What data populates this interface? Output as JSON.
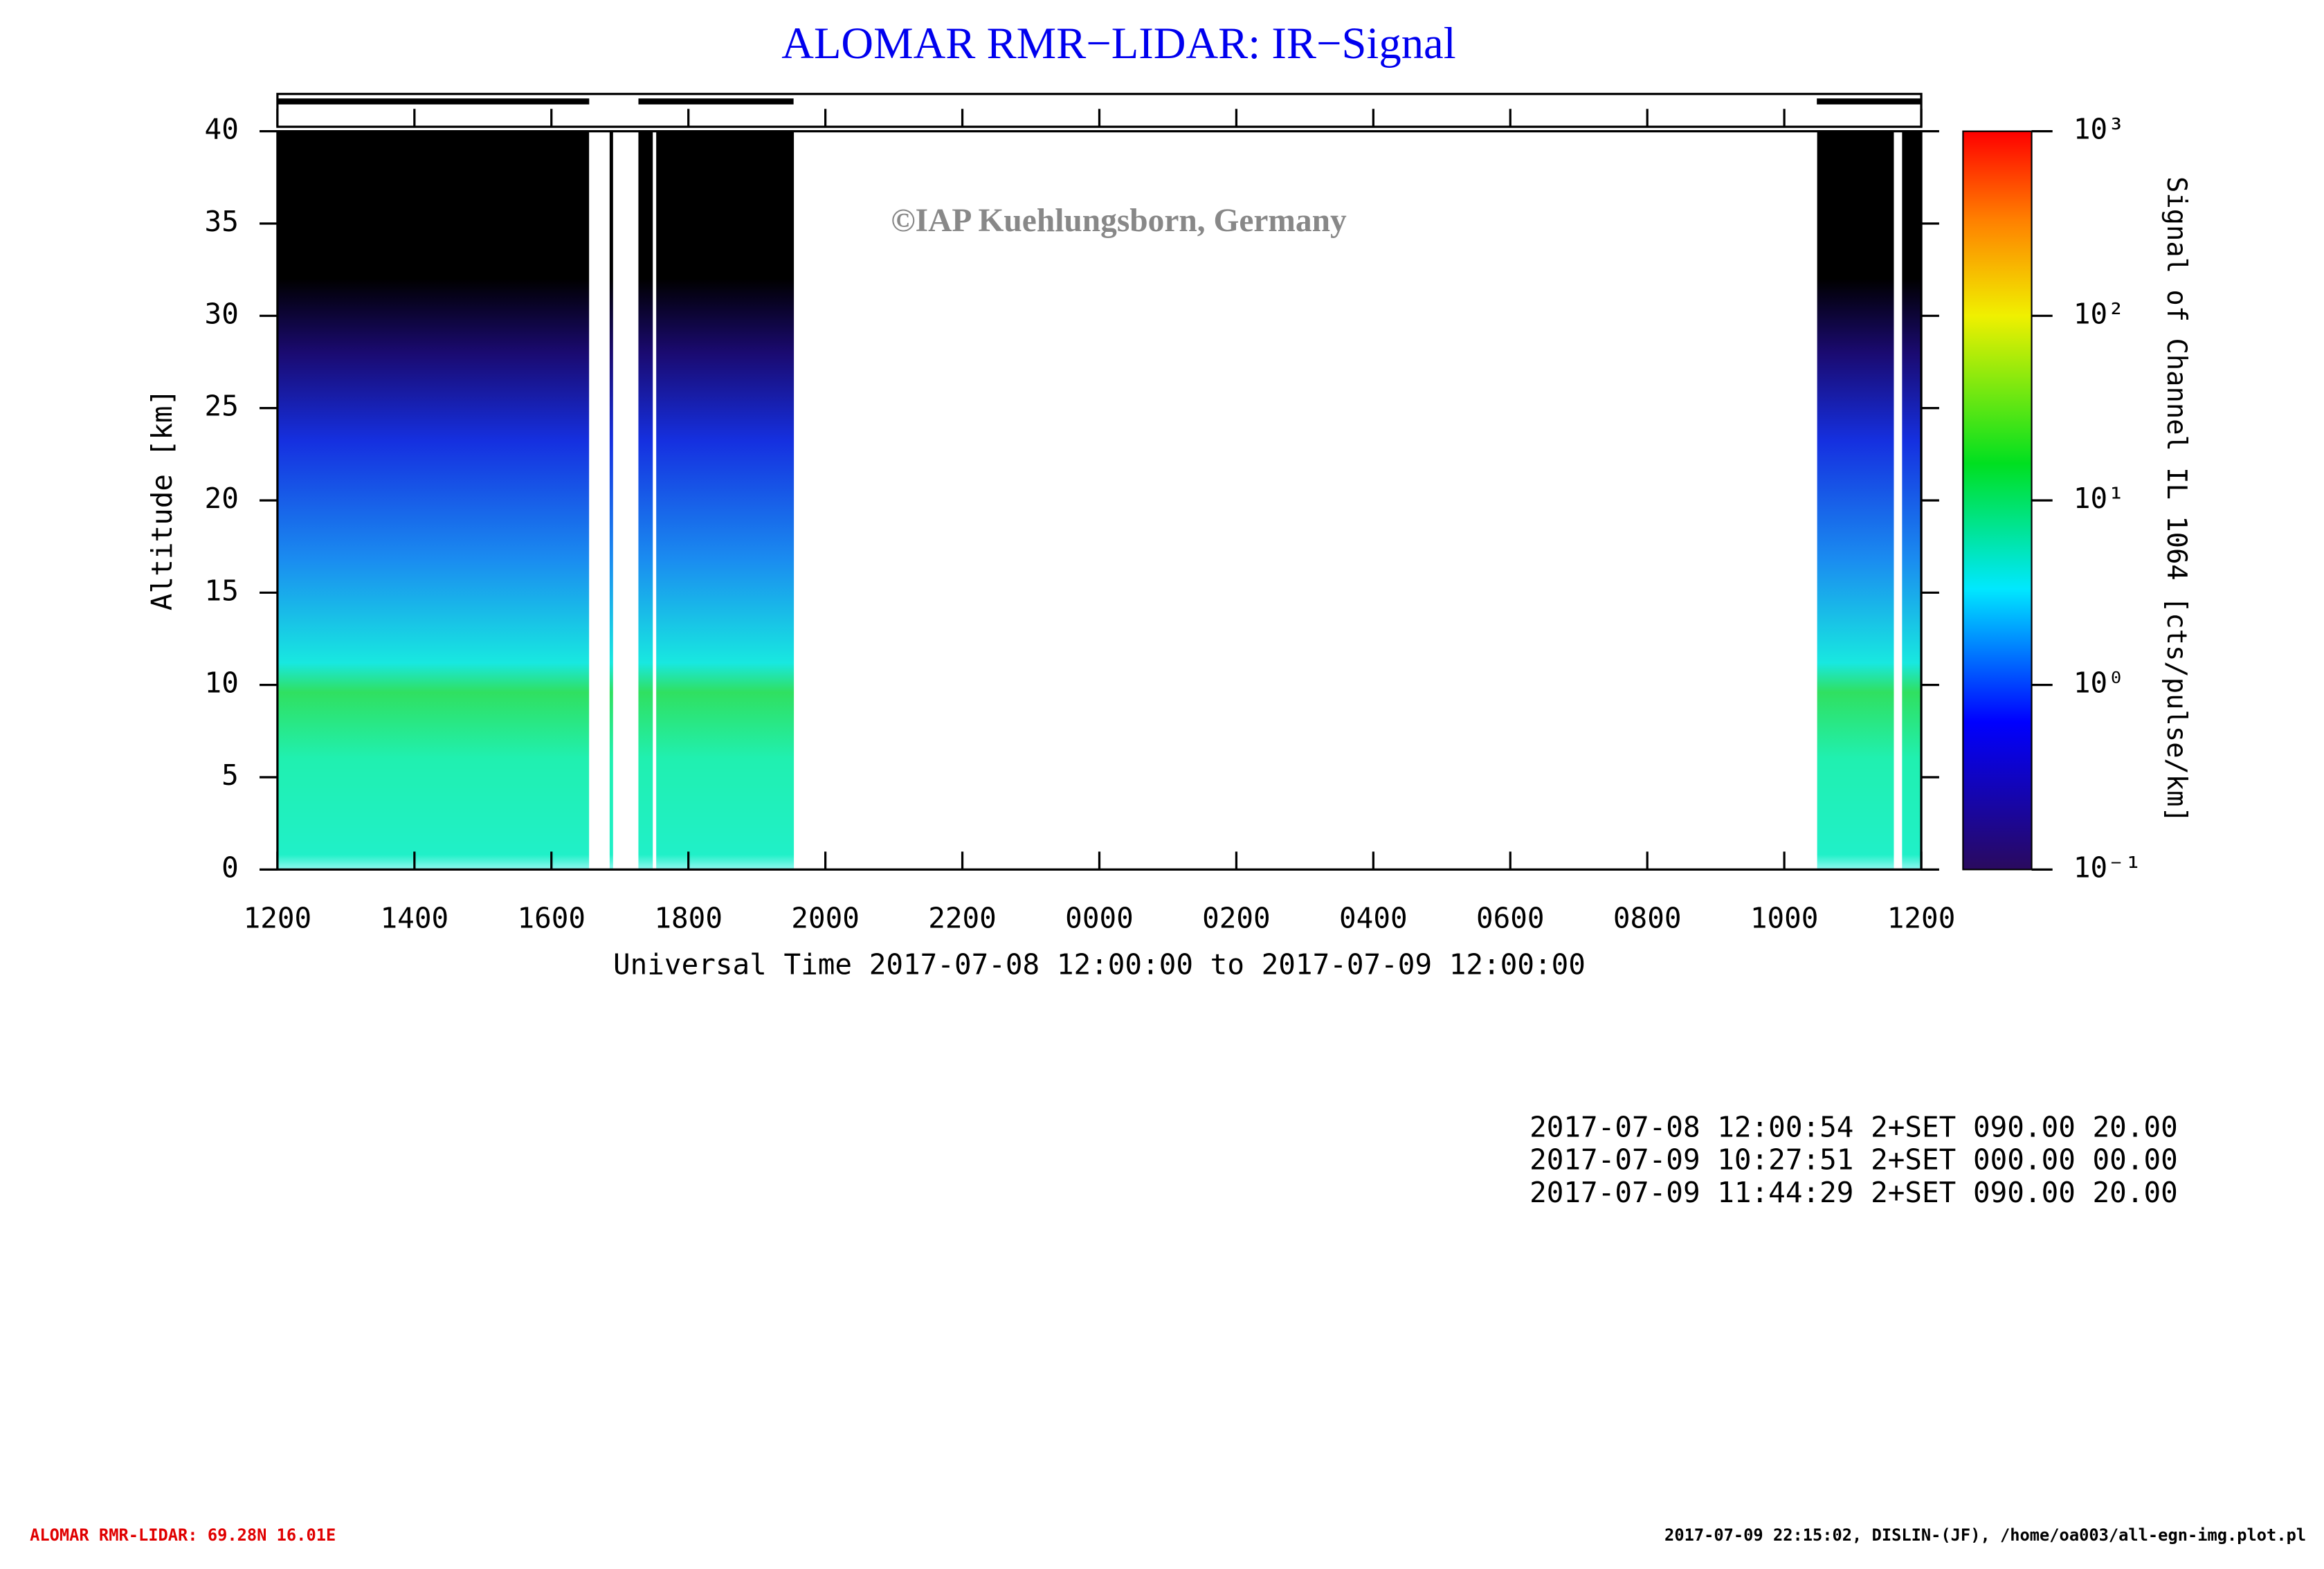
{
  "chart_data": {
    "type": "heatmap",
    "title": "ALOMAR RMR−LIDAR: IR−Signal",
    "watermark": "©IAP Kuehlungsborn, Germany",
    "x_label": "Universal Time 2017-07-08 12:00:00 to 2017-07-09 12:00:00",
    "y_label": "Altitude [km]",
    "colorbar_label": "Signal of Channel IL 1064 [cts/pulse/km]",
    "xlim": [
      0,
      24
    ],
    "xticks": [
      {
        "value": 0,
        "label": "1200"
      },
      {
        "value": 2,
        "label": "1400"
      },
      {
        "value": 4,
        "label": "1600"
      },
      {
        "value": 6,
        "label": "1800"
      },
      {
        "value": 8,
        "label": "2000"
      },
      {
        "value": 10,
        "label": "2200"
      },
      {
        "value": 12,
        "label": "0000"
      },
      {
        "value": 14,
        "label": "0200"
      },
      {
        "value": 16,
        "label": "0400"
      },
      {
        "value": 18,
        "label": "0600"
      },
      {
        "value": 20,
        "label": "0800"
      },
      {
        "value": 22,
        "label": "1000"
      },
      {
        "value": 24,
        "label": "1200"
      }
    ],
    "ylim": [
      0,
      40
    ],
    "yticks": [
      0,
      5,
      10,
      15,
      20,
      25,
      30,
      35,
      40
    ],
    "clim": [
      0.1,
      1000
    ],
    "color_scale": "log",
    "cticks": [
      {
        "value": 0.1,
        "label": "10⁻¹"
      },
      {
        "value": 1,
        "label": "10⁰"
      },
      {
        "value": 10,
        "label": "10¹"
      },
      {
        "value": 100,
        "label": "10²"
      },
      {
        "value": 1000,
        "label": "10³"
      }
    ],
    "segments": [
      [
        0,
        4.55
      ],
      [
        4.85,
        4.9
      ],
      [
        5.27,
        5.48
      ],
      [
        5.53,
        7.54
      ],
      [
        22.48,
        23.6
      ],
      [
        23.72,
        24
      ]
    ],
    "info_lines": [
      "2017-07-08 12:00:54 2+SET 090.00 20.00",
      "2017-07-09 10:27:51 2+SET 000.00 00.00",
      "2017-07-09 11:44:29 2+SET 090.00 20.00"
    ],
    "footer_left": "ALOMAR RMR-LIDAR: 69.28N 16.01E",
    "footer_right": "2017-07-09 22:15:02, DISLIN-(JF), /home/oa003/all-egn-img.plot.pl"
  }
}
